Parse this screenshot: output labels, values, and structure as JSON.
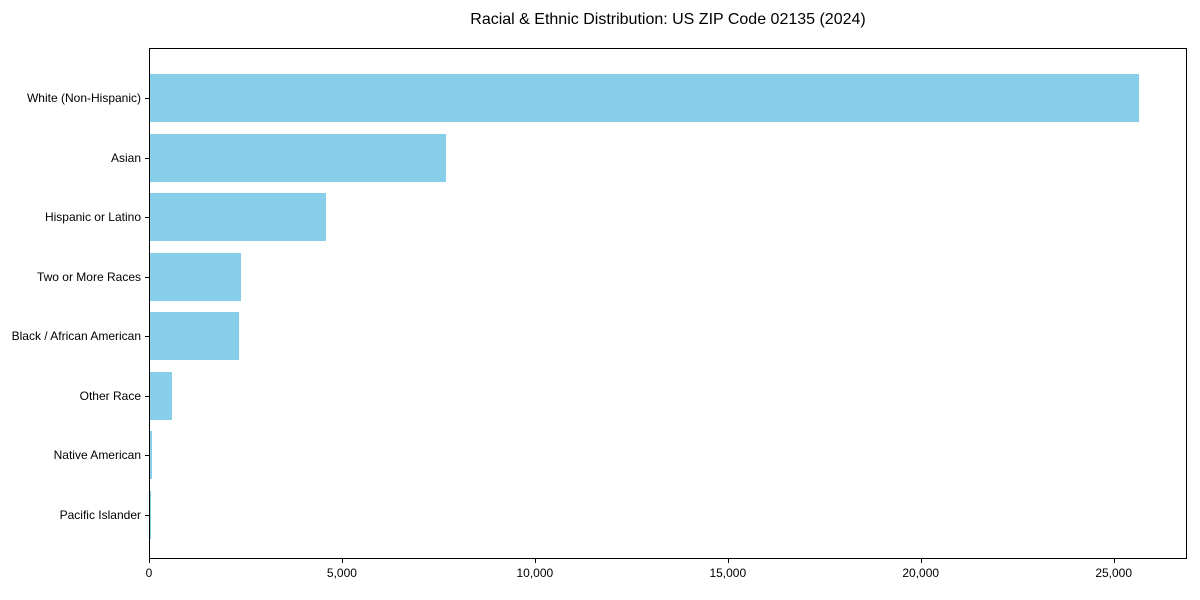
{
  "chart_data": {
    "type": "bar",
    "orientation": "horizontal",
    "title": "Racial & Ethnic Distribution: US ZIP Code 02135 (2024)",
    "categories": [
      "White (Non-Hispanic)",
      "Asian",
      "Hispanic or Latino",
      "Two or More Races",
      "Black / African American",
      "Other Race",
      "Native American",
      "Pacific Islander"
    ],
    "values": [
      25620,
      7675,
      4565,
      2360,
      2310,
      570,
      40,
      20
    ],
    "xlabel": "",
    "ylabel": "",
    "xlim": [
      0,
      26900
    ],
    "x_ticks": [
      0,
      5000,
      10000,
      15000,
      20000,
      25000
    ],
    "x_tick_labels": [
      "0",
      "5,000",
      "10,000",
      "15,000",
      "20,000",
      "25,000"
    ],
    "grid": false,
    "legend": "none",
    "bar_color": "#87CEEB",
    "frame_color": "#000000",
    "background_color": "#ffffff",
    "text_color": "#000000"
  }
}
